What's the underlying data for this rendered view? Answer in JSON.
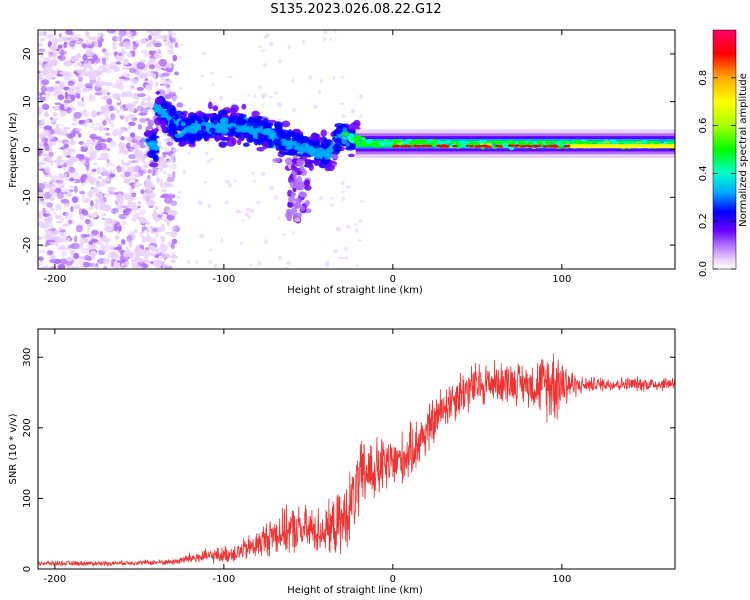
{
  "title": "S135.2023.026.08.22.G12",
  "chart_data": [
    {
      "type": "heatmap",
      "xlabel": "Height of straight line (km)",
      "ylabel": "Frequency (Hz)",
      "xlim": [
        -210,
        167
      ],
      "ylim": [
        -25,
        25
      ],
      "xticks": [
        -200,
        -100,
        0,
        100
      ],
      "yticks": [
        -20,
        -10,
        0,
        10,
        20
      ],
      "colorbar": {
        "label": "Normalized spectral amplitude",
        "range": [
          0.0,
          1.0
        ],
        "ticks": [
          0.0,
          0.2,
          0.4,
          0.6,
          0.8
        ],
        "colors": [
          "#ffffff",
          "#e8d0ff",
          "#b070ff",
          "#6a00ff",
          "#0000ff",
          "#00aaff",
          "#00ffcc",
          "#00ff00",
          "#aaff00",
          "#ffff00",
          "#ffaa00",
          "#ff0000",
          "#ff0066"
        ]
      },
      "ridge": [
        {
          "x": -140,
          "y": 9
        },
        {
          "x": -125,
          "y": 4
        },
        {
          "x": -110,
          "y": 5
        },
        {
          "x": -95,
          "y": 5
        },
        {
          "x": -80,
          "y": 4
        },
        {
          "x": -65,
          "y": 2
        },
        {
          "x": -50,
          "y": 0
        },
        {
          "x": -40,
          "y": -1
        },
        {
          "x": -30,
          "y": 3
        },
        {
          "x": -20,
          "y": 2
        },
        {
          "x": -10,
          "y": 1
        },
        {
          "x": 0,
          "y": 1.5
        },
        {
          "x": 50,
          "y": 1
        },
        {
          "x": 100,
          "y": 1
        },
        {
          "x": 167,
          "y": 1
        }
      ]
    },
    {
      "type": "line",
      "xlabel": "Height of straight line (km)",
      "ylabel": "SNR (10 * v/v)",
      "xlim": [
        -210,
        167
      ],
      "ylim": [
        0,
        340
      ],
      "xticks": [
        -200,
        -100,
        0,
        100
      ],
      "yticks": [
        0,
        100,
        200,
        300
      ],
      "color": "#ee3333",
      "series": [
        {
          "x": [
            -210,
            -190,
            -170,
            -150,
            -130,
            -120,
            -110,
            -100,
            -90,
            -80,
            -70,
            -60,
            -50,
            -40,
            -30,
            -25,
            -20,
            -15,
            -10,
            -5,
            0,
            5,
            10,
            15,
            20,
            25,
            30,
            40,
            50,
            60,
            70,
            80,
            90,
            95,
            100,
            105,
            110,
            120,
            130,
            140,
            150,
            160,
            167
          ],
          "y": [
            8,
            8,
            8,
            9,
            10,
            15,
            18,
            20,
            25,
            35,
            50,
            55,
            55,
            55,
            65,
            90,
            120,
            140,
            140,
            145,
            150,
            155,
            165,
            180,
            195,
            210,
            230,
            250,
            260,
            265,
            265,
            262,
            260,
            265,
            265,
            262,
            260,
            262,
            262,
            262,
            262,
            262,
            265
          ],
          "noise": [
            4,
            4,
            4,
            4,
            5,
            10,
            12,
            14,
            18,
            25,
            35,
            40,
            40,
            40,
            55,
            60,
            65,
            60,
            55,
            50,
            45,
            45,
            45,
            45,
            45,
            40,
            40,
            40,
            40,
            35,
            35,
            35,
            55,
            70,
            55,
            30,
            15,
            12,
            12,
            12,
            12,
            12,
            12
          ]
        }
      ]
    }
  ]
}
